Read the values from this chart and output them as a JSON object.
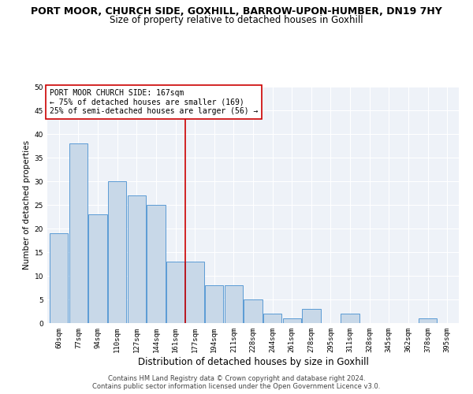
{
  "title": "PORT MOOR, CHURCH SIDE, GOXHILL, BARROW-UPON-HUMBER, DN19 7HY",
  "subtitle": "Size of property relative to detached houses in Goxhill",
  "xlabel": "Distribution of detached houses by size in Goxhill",
  "ylabel": "Number of detached properties",
  "footer_line1": "Contains HM Land Registry data © Crown copyright and database right 2024.",
  "footer_line2": "Contains public sector information licensed under the Open Government Licence v3.0.",
  "categories": [
    "60sqm",
    "77sqm",
    "94sqm",
    "110sqm",
    "127sqm",
    "144sqm",
    "161sqm",
    "177sqm",
    "194sqm",
    "211sqm",
    "228sqm",
    "244sqm",
    "261sqm",
    "278sqm",
    "295sqm",
    "311sqm",
    "328sqm",
    "345sqm",
    "362sqm",
    "378sqm",
    "395sqm"
  ],
  "values": [
    19,
    38,
    23,
    30,
    27,
    25,
    13,
    13,
    8,
    8,
    5,
    2,
    1,
    3,
    0,
    2,
    0,
    0,
    0,
    1,
    0
  ],
  "bar_color": "#c8d8e8",
  "bar_edge_color": "#5b9bd5",
  "annotation_box_text": "PORT MOOR CHURCH SIDE: 167sqm\n← 75% of detached houses are smaller (169)\n25% of semi-detached houses are larger (56) →",
  "annotation_box_color": "#ffffff",
  "annotation_box_edge_color": "#cc0000",
  "vline_x_index": 6.5,
  "vline_color": "#cc0000",
  "ylim": [
    0,
    50
  ],
  "yticks": [
    0,
    5,
    10,
    15,
    20,
    25,
    30,
    35,
    40,
    45,
    50
  ],
  "background_color": "#eef2f8",
  "grid_color": "#ffffff",
  "fig_background_color": "#ffffff",
  "title_fontsize": 9,
  "subtitle_fontsize": 8.5,
  "xlabel_fontsize": 8.5,
  "ylabel_fontsize": 7.5,
  "tick_fontsize": 6.5,
  "annotation_fontsize": 7,
  "footer_fontsize": 6
}
